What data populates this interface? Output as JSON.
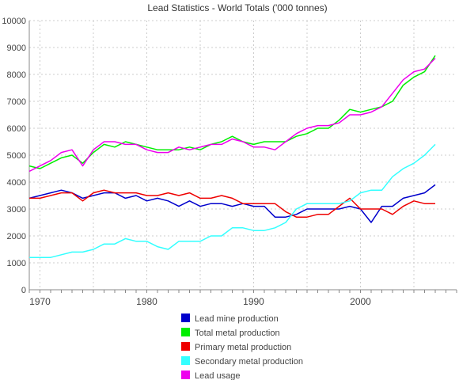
{
  "chart_data": {
    "type": "line",
    "title": "Lead Statistics - World Totals ('000 tonnes)",
    "xlabel": "",
    "ylabel": "",
    "xlim": [
      1969,
      2009
    ],
    "ylim": [
      0,
      10000
    ],
    "yticks": [
      0,
      1000,
      2000,
      3000,
      4000,
      5000,
      6000,
      7000,
      8000,
      9000,
      10000
    ],
    "xticks": [
      1970,
      1980,
      1990,
      2000
    ],
    "grid": true,
    "legend_position": "bottom",
    "x": [
      1969,
      1970,
      1971,
      1972,
      1973,
      1974,
      1975,
      1976,
      1977,
      1978,
      1979,
      1980,
      1981,
      1982,
      1983,
      1984,
      1985,
      1986,
      1987,
      1988,
      1989,
      1990,
      1991,
      1992,
      1993,
      1994,
      1995,
      1996,
      1997,
      1998,
      1999,
      2000,
      2001,
      2002,
      2003,
      2004,
      2005,
      2006,
      2007
    ],
    "series": [
      {
        "name": "Lead mine production",
        "color": "#0000cc",
        "values": [
          3400,
          3500,
          3600,
          3700,
          3600,
          3400,
          3500,
          3600,
          3600,
          3400,
          3500,
          3300,
          3400,
          3300,
          3100,
          3300,
          3100,
          3200,
          3200,
          3100,
          3200,
          3100,
          3100,
          2700,
          2700,
          2800,
          3000,
          3000,
          3000,
          3000,
          3100,
          3000,
          2500,
          3100,
          3100,
          3400,
          3500,
          3600,
          3900
        ]
      },
      {
        "name": "Total metal production",
        "color": "#00ee00",
        "values": [
          4600,
          4500,
          4700,
          4900,
          5000,
          4700,
          5100,
          5400,
          5300,
          5500,
          5400,
          5300,
          5200,
          5200,
          5200,
          5300,
          5200,
          5400,
          5500,
          5700,
          5500,
          5400,
          5500,
          5500,
          5500,
          5700,
          5800,
          6000,
          6000,
          6300,
          6700,
          6600,
          6700,
          6800,
          7000,
          7600,
          7900,
          8100,
          8700
        ]
      },
      {
        "name": "Primary metal production",
        "color": "#ee0000",
        "values": [
          3400,
          3400,
          3500,
          3600,
          3600,
          3300,
          3600,
          3700,
          3600,
          3600,
          3600,
          3500,
          3500,
          3600,
          3500,
          3600,
          3400,
          3400,
          3500,
          3400,
          3200,
          3200,
          3200,
          3200,
          2900,
          2700,
          2700,
          2800,
          2800,
          3100,
          3400,
          3000,
          3000,
          3000,
          2800,
          3100,
          3300,
          3200,
          3200
        ]
      },
      {
        "name": "Secondary metal production",
        "color": "#33ffff",
        "values": [
          1200,
          1200,
          1200,
          1300,
          1400,
          1400,
          1500,
          1700,
          1700,
          1900,
          1800,
          1800,
          1600,
          1500,
          1800,
          1800,
          1800,
          2000,
          2000,
          2300,
          2300,
          2200,
          2200,
          2300,
          2500,
          3000,
          3200,
          3200,
          3200,
          3200,
          3300,
          3600,
          3700,
          3700,
          4200,
          4500,
          4700,
          5000,
          5400
        ]
      },
      {
        "name": "Lead usage",
        "color": "#ee00ee",
        "values": [
          4400,
          4600,
          4800,
          5100,
          5200,
          4600,
          5200,
          5500,
          5500,
          5400,
          5400,
          5200,
          5100,
          5100,
          5300,
          5200,
          5300,
          5400,
          5400,
          5600,
          5500,
          5300,
          5300,
          5200,
          5500,
          5800,
          6000,
          6100,
          6100,
          6200,
          6500,
          6500,
          6600,
          6800,
          7300,
          7800,
          8100,
          8200,
          8600
        ]
      }
    ]
  }
}
